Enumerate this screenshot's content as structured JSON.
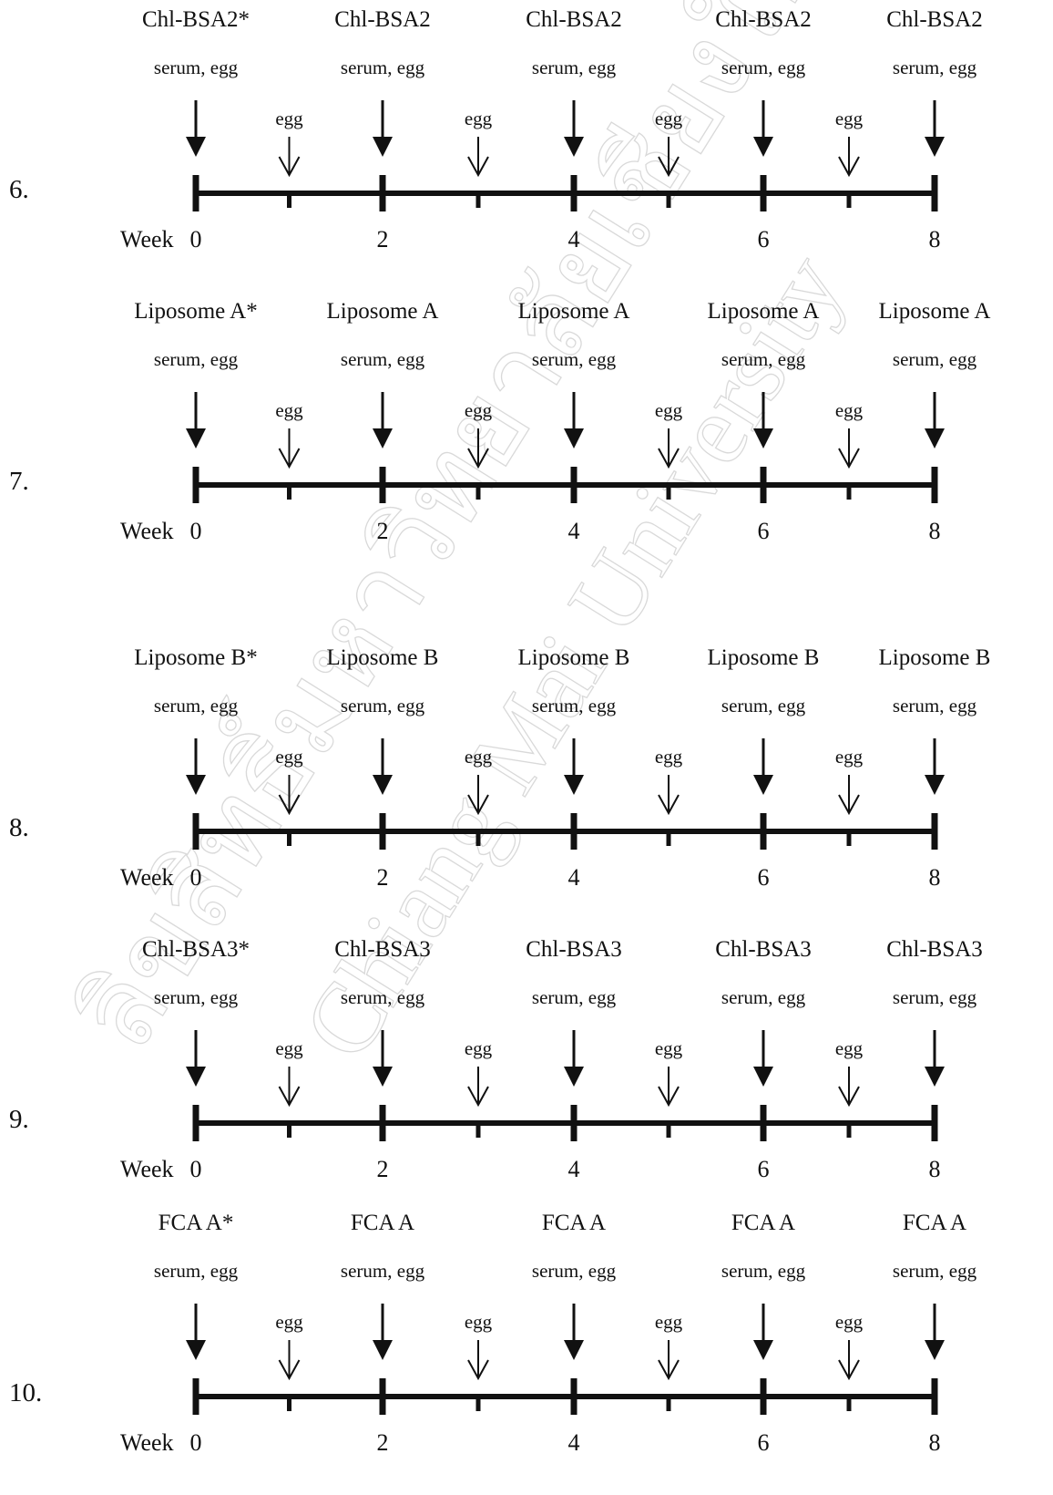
{
  "watermark_lines": [
    "ลิขสิทธิ์มหาวิทยาลัยเชียงใหม่",
    "Chiang Mai University"
  ],
  "week_label": "Week",
  "weeks": [
    "0",
    "2",
    "4",
    "6",
    "8"
  ],
  "egg_label": "egg",
  "schedules": [
    {
      "number": "6.",
      "vaccines": [
        "Chl-BSA2*",
        "Chl-BSA2",
        "Chl-BSA2",
        "Chl-BSA2",
        "Chl-BSA2"
      ],
      "samples": [
        "serum, egg",
        "serum, egg",
        "serum, egg",
        "serum, egg",
        "serum, egg"
      ]
    },
    {
      "number": "7.",
      "vaccines": [
        "Liposome A*",
        "Liposome A",
        "Liposome A",
        "Liposome A",
        "Liposome A"
      ],
      "samples": [
        "serum, egg",
        "serum, egg",
        "serum, egg",
        "serum, egg",
        "serum, egg"
      ]
    },
    {
      "number": "8.",
      "vaccines": [
        "Liposome B*",
        "Liposome B",
        "Liposome B",
        "Liposome B",
        "Liposome B"
      ],
      "samples": [
        "serum, egg",
        "serum, egg",
        "serum, egg",
        "serum, egg",
        "serum, egg"
      ]
    },
    {
      "number": "9.",
      "vaccines": [
        "Chl-BSA3*",
        "Chl-BSA3",
        "Chl-BSA3",
        "Chl-BSA3",
        "Chl-BSA3"
      ],
      "samples": [
        "serum, egg",
        "serum, egg",
        "serum, egg",
        "serum, egg",
        "serum, egg"
      ]
    },
    {
      "number": "10.",
      "vaccines": [
        "FCA A*",
        "FCA A",
        "FCA A",
        "FCA A",
        "FCA A"
      ],
      "samples": [
        "serum, egg",
        "serum, egg",
        "serum, egg",
        "serum, egg",
        "serum, egg"
      ]
    }
  ]
}
